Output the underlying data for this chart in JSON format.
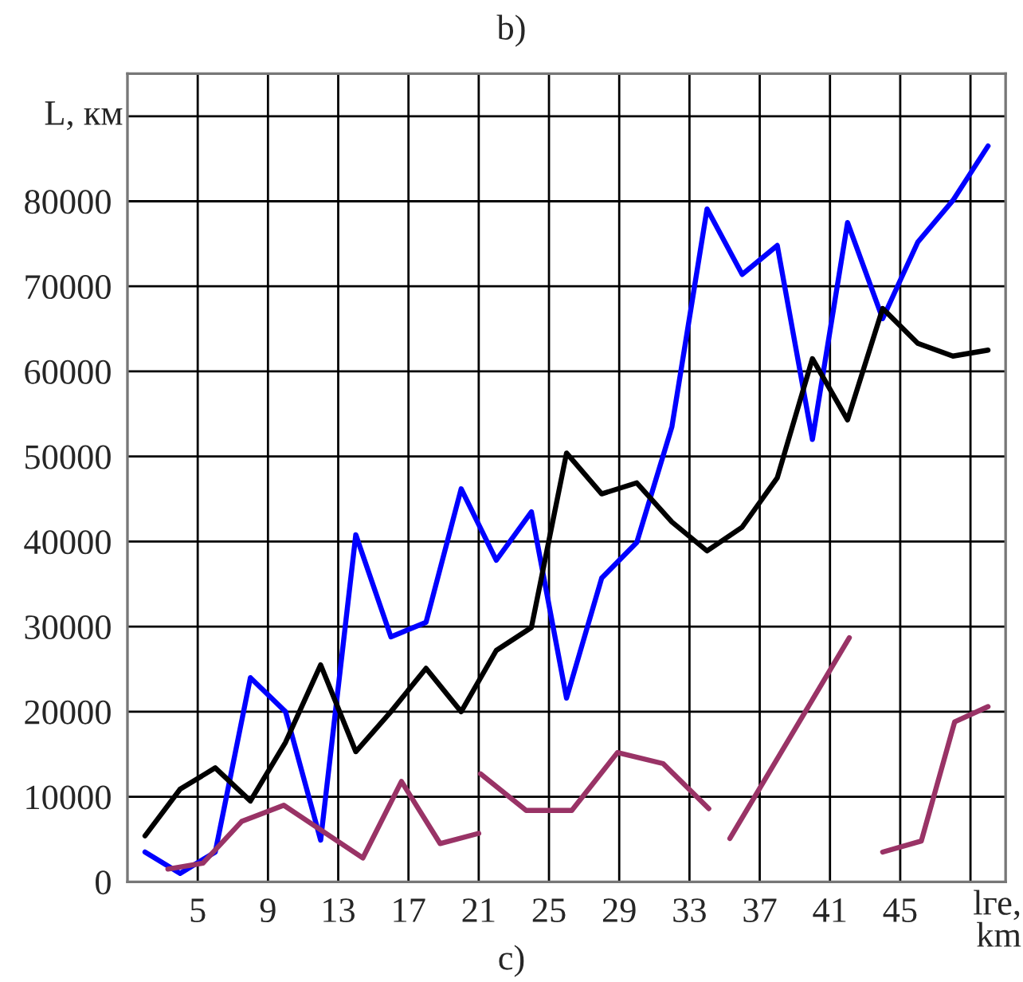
{
  "chart_data": {
    "type": "line",
    "title": "b)",
    "xlabel": "lге, km",
    "ylabel": "L, км",
    "annotations": [
      "c)"
    ],
    "xlim": [
      1,
      51
    ],
    "ylim": [
      0,
      95000
    ],
    "xticks": [
      5,
      9,
      13,
      17,
      21,
      25,
      29,
      33,
      37,
      41,
      45,
      {
        "value": 49,
        "label": null
      }
    ],
    "yticks": [
      0,
      10000,
      20000,
      30000,
      40000,
      50000,
      60000,
      70000,
      80000,
      {
        "value": 90000,
        "label": null
      }
    ],
    "grid": true,
    "marker": "none",
    "line_style": "solid",
    "series": [
      {
        "color": "#0000ff",
        "x": [
          2,
          4,
          6,
          8,
          10,
          12,
          14,
          16,
          18,
          20,
          22,
          24,
          26,
          28,
          30,
          32,
          34,
          36,
          38,
          40,
          42,
          44,
          46,
          48,
          50
        ],
        "values": [
          3500,
          1000,
          3500,
          24000,
          20000,
          4900,
          40800,
          28800,
          30500,
          46200,
          37800,
          43500,
          21600,
          35700,
          39900,
          53500,
          79100,
          71400,
          74800,
          52000,
          77500,
          66200,
          75200,
          80100,
          86500
        ]
      },
      {
        "color": "#000000",
        "x": [
          2,
          4,
          6,
          8,
          10,
          12,
          14,
          16,
          18,
          20,
          22,
          24,
          26,
          28,
          30,
          32,
          34,
          36,
          38,
          40,
          42,
          44,
          46,
          48,
          50
        ],
        "values": [
          5400,
          10900,
          13400,
          9500,
          16400,
          25500,
          15300,
          20000,
          25100,
          20000,
          27200,
          29900,
          50400,
          45600,
          46900,
          42300,
          38900,
          41700,
          47500,
          61500,
          54300,
          67400,
          63300,
          61800,
          62500
        ]
      },
      {
        "color": "#993366",
        "x": [
          3.3,
          5.3,
          7.5,
          9.9,
          14.4,
          16.6,
          18.8,
          21.0,
          21.05,
          21.1,
          23.7,
          26.3,
          28.9,
          31.5,
          34.1,
          34.7,
          35.3,
          42.1,
          43,
          44.0,
          46.2,
          48.1,
          50.0
        ],
        "values": [
          1500,
          2200,
          7100,
          9000,
          2800,
          11800,
          4500,
          5700,
          null,
          12700,
          8400,
          8400,
          15200,
          13900,
          8600,
          null,
          5100,
          28700,
          null,
          3500,
          4800,
          18800,
          20600
        ]
      }
    ]
  }
}
